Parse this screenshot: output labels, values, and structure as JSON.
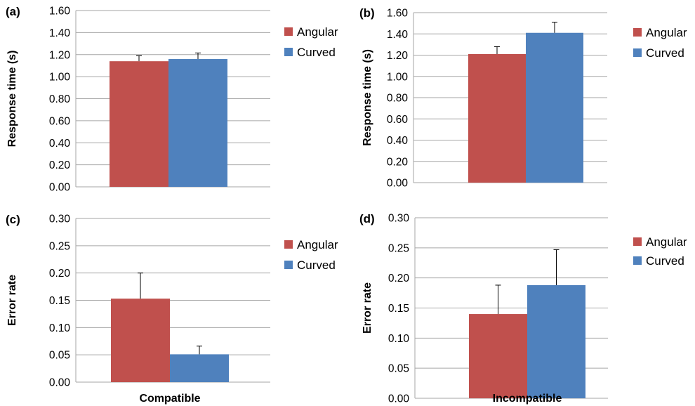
{
  "series_colors": {
    "Angular": "#c0504d",
    "Curved": "#4f81bd"
  },
  "chart_data": [
    {
      "type": "bar",
      "panel_label": "(a)",
      "ylabel": "Response time (s)",
      "xlabel": "",
      "ylim": [
        0,
        1.6
      ],
      "yticks": [
        "0.00",
        "0.20",
        "0.40",
        "0.60",
        "0.80",
        "1.00",
        "1.20",
        "1.40",
        "1.60"
      ],
      "grid": true,
      "legend": "right",
      "series": [
        {
          "name": "Angular",
          "value": 1.14,
          "error": 0.05
        },
        {
          "name": "Curved",
          "value": 1.16,
          "error": 0.055
        }
      ]
    },
    {
      "type": "bar",
      "panel_label": "(b)",
      "ylabel": "Response time (s)",
      "xlabel": "",
      "ylim": [
        0,
        1.6
      ],
      "yticks": [
        "0.00",
        "0.20",
        "0.40",
        "0.60",
        "0.80",
        "1.00",
        "1.20",
        "1.40",
        "1.60"
      ],
      "grid": true,
      "legend": "right",
      "series": [
        {
          "name": "Angular",
          "value": 1.21,
          "error": 0.07
        },
        {
          "name": "Curved",
          "value": 1.41,
          "error": 0.1
        }
      ]
    },
    {
      "type": "bar",
      "panel_label": "(c)",
      "ylabel": "Error rate",
      "xlabel": "Compatible",
      "ylim": [
        0,
        0.3
      ],
      "yticks": [
        "0.00",
        "0.05",
        "0.10",
        "0.15",
        "0.20",
        "0.25",
        "0.30"
      ],
      "grid": true,
      "legend": "right",
      "series": [
        {
          "name": "Angular",
          "value": 0.153,
          "error": 0.047
        },
        {
          "name": "Curved",
          "value": 0.051,
          "error": 0.015
        }
      ]
    },
    {
      "type": "bar",
      "panel_label": "(d)",
      "ylabel": "Error rate",
      "xlabel": "Incompatible",
      "ylim": [
        0,
        0.3
      ],
      "yticks": [
        "0.00",
        "0.05",
        "0.10",
        "0.15",
        "0.20",
        "0.25",
        "0.30"
      ],
      "grid": true,
      "legend": "right",
      "series": [
        {
          "name": "Angular",
          "value": 0.14,
          "error": 0.048
        },
        {
          "name": "Curved",
          "value": 0.188,
          "error": 0.059
        }
      ]
    }
  ]
}
